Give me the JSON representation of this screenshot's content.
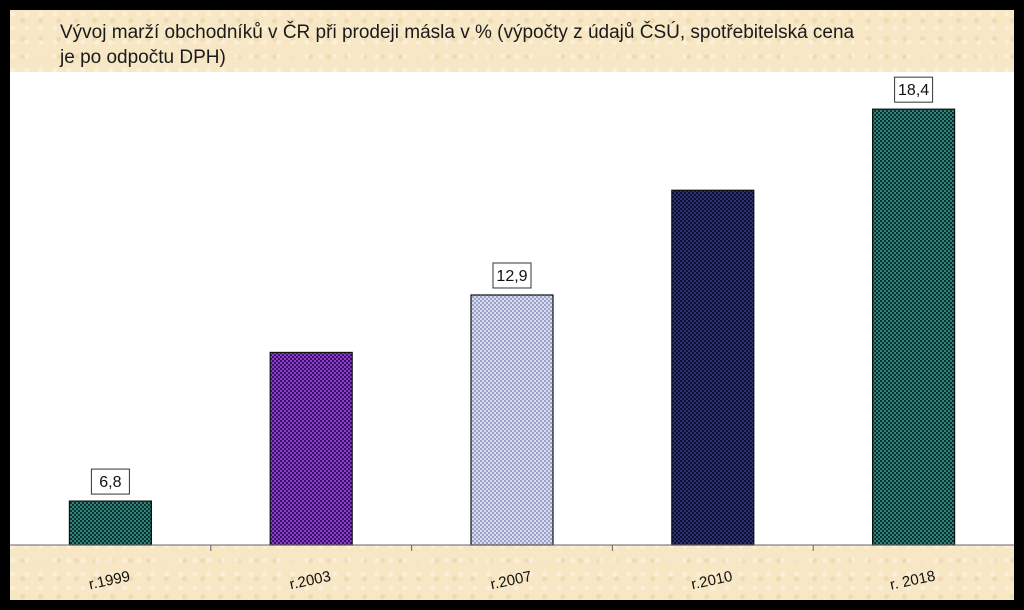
{
  "chart_data": {
    "type": "bar",
    "title": "Vývoj marží obchodníků v ČR při prodeji másla v % (výpočty z údajů ČSÚ, spotřebitelská cena je po odpočtu DPH)",
    "categories": [
      "r.1999",
      "r.2003",
      "r.2007",
      "r.2010",
      "r. 2018"
    ],
    "values": [
      6.8,
      11.2,
      12.9,
      16.0,
      18.4
    ],
    "data_labels": [
      "6,8",
      "",
      "12,9",
      "",
      "18,4"
    ],
    "ylim": [
      5.5,
      19.5
    ],
    "grid": false,
    "legend": "none",
    "colors": [
      "#2e8a6e",
      "#8a3fd1",
      "#d9dcef",
      "#2d3272",
      "#2e8a6e"
    ],
    "pattern_dark": [
      "#0e2c3a",
      "#3b125f",
      "#9aa0c8",
      "#0d0f33",
      "#0e2c3a"
    ]
  }
}
